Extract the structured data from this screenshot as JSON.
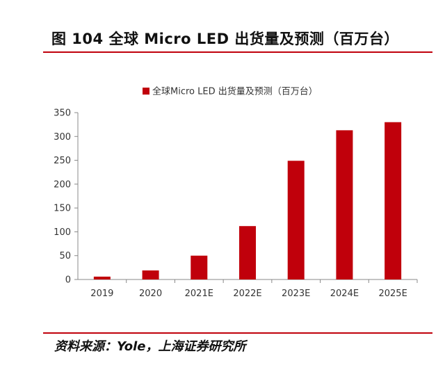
{
  "figure_title": "图 104 全球 Micro LED 出货量及预测（百万台）",
  "source": "资料来源：Yole，上海证券研究所",
  "colors": {
    "bar": "#c0000b",
    "accent_rule": "#c0000b",
    "axis": "#888888",
    "text": "#333333"
  },
  "chart_data": {
    "type": "bar",
    "categories": [
      "2019",
      "2020",
      "2021E",
      "2022E",
      "2023E",
      "2024E",
      "2025E"
    ],
    "series": [
      {
        "name": "全球Micro LED 出货量及预测（百万台）",
        "values": [
          6,
          19,
          50,
          112,
          249,
          313,
          330
        ]
      }
    ],
    "yticks": [
      "0",
      "50",
      "100",
      "150",
      "200",
      "250",
      "300",
      "350"
    ],
    "ylim": [
      0,
      350
    ],
    "legend_position": "top",
    "grid": false
  }
}
